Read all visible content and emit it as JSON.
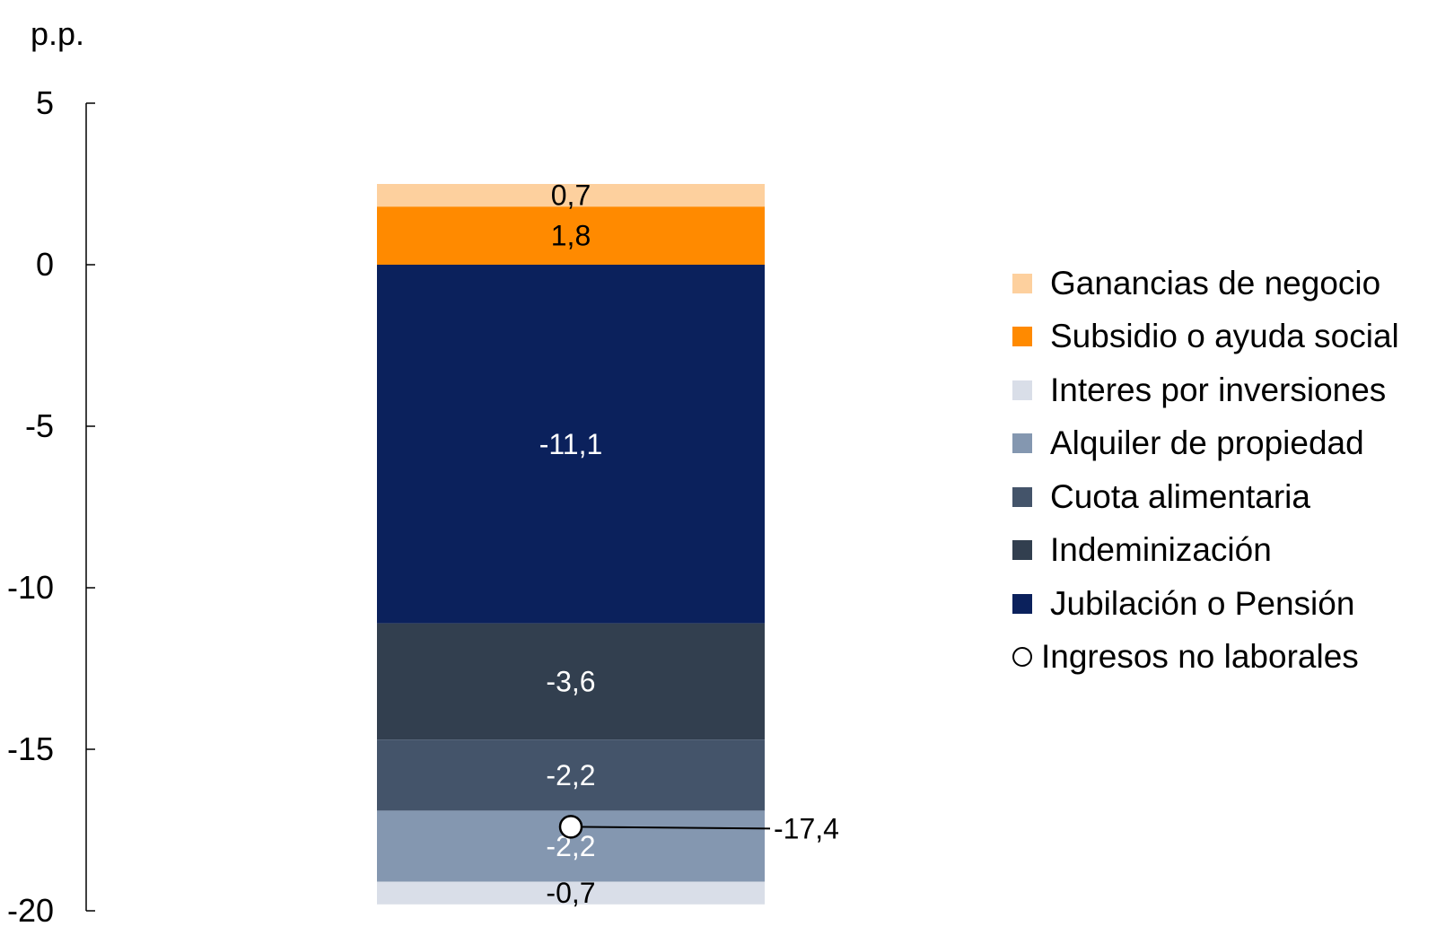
{
  "chart_data": {
    "type": "bar",
    "stacked": true,
    "unit_label": "p.p.",
    "ylim": [
      -20,
      5
    ],
    "yticks": [
      5,
      0,
      -5,
      -10,
      -15,
      -20
    ],
    "ytick_labels": [
      "5",
      "0",
      "-5",
      "-10",
      "-15",
      "-20"
    ],
    "grid": false,
    "legend_position": "right",
    "categories": [
      ""
    ],
    "series": [
      {
        "name": "Ganancias de negocio",
        "value": 0.7,
        "label": "0,7",
        "color": "#FDD09E",
        "label_color": "#000000"
      },
      {
        "name": "Subsidio o ayuda social",
        "value": 1.8,
        "label": "1,8",
        "color": "#FF8A00",
        "label_color": "#000000"
      },
      {
        "name": "Interes por inversiones",
        "value": -0.7,
        "label": "-0,7",
        "color": "#D9DEE8",
        "label_color": "#000000"
      },
      {
        "name": "Alquiler de propiedad",
        "value": -2.2,
        "label": "-2,2",
        "color": "#8497B0",
        "label_color": "#FFFFFF"
      },
      {
        "name": "Cuota alimentaria",
        "value": -2.2,
        "label": "-2,2",
        "color": "#44546A",
        "label_color": "#FFFFFF"
      },
      {
        "name": "Indeminización",
        "value": -3.6,
        "label": "-3,6",
        "color": "#323F4F",
        "label_color": "#FFFFFF"
      },
      {
        "name": "Jubilación o Pensión",
        "value": -11.1,
        "label": "-11,1",
        "color": "#0B215C",
        "label_color": "#FFFFFF"
      }
    ],
    "stack_order_positive": [
      "Subsidio o ayuda social",
      "Ganancias de negocio"
    ],
    "stack_order_negative": [
      "Jubilación o Pensión",
      "Indeminización",
      "Cuota alimentaria",
      "Alquiler de propiedad",
      "Interes por inversiones"
    ],
    "total": {
      "name": "Ingresos no laborales",
      "value": -17.4,
      "label": "-17,4",
      "marker": "circle"
    },
    "legend_order": [
      "Ganancias de negocio",
      "Subsidio o ayuda social",
      "Interes por inversiones",
      "Alquiler de propiedad",
      "Cuota alimentaria",
      "Indeminización",
      "Jubilación o Pensión",
      "Ingresos no laborales"
    ]
  }
}
